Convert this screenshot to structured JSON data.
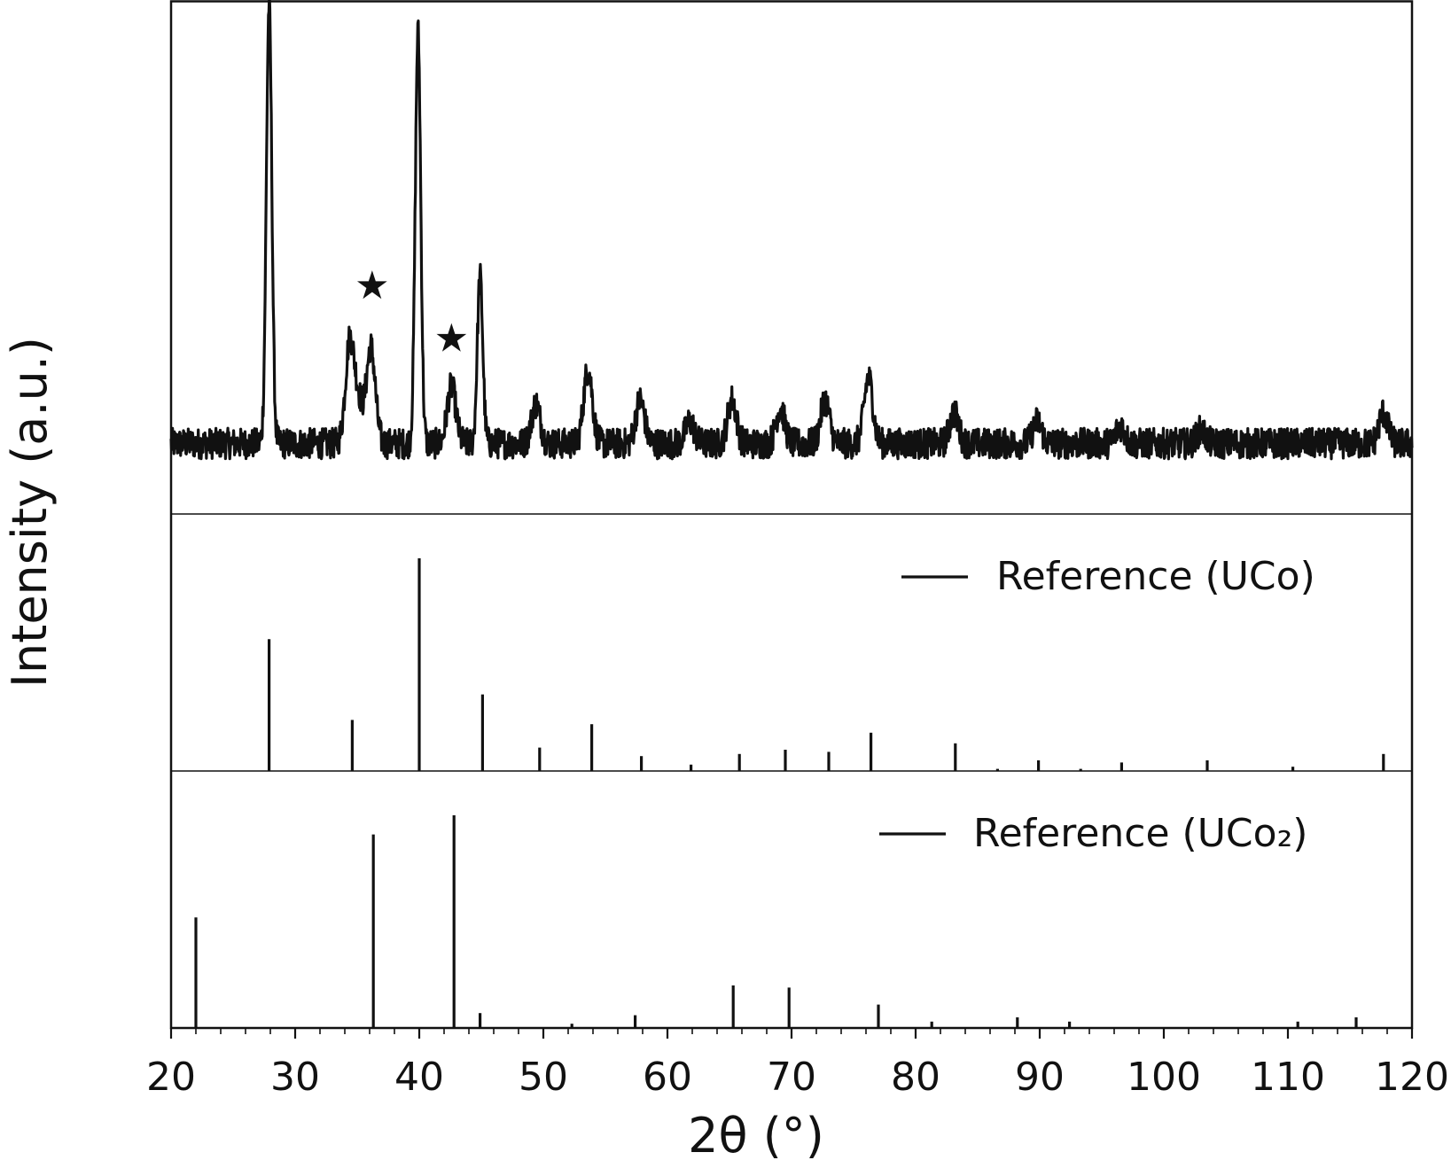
{
  "chart_data": {
    "type": "line",
    "xlabel": "2θ (°)",
    "ylabel": "Intensity (a.u.)",
    "xlim": [
      20,
      120
    ],
    "x_ticks": [
      "20",
      "30",
      "40",
      "50",
      "60",
      "70",
      "80",
      "90",
      "100",
      "110",
      "120"
    ],
    "y_ticks_shown": false,
    "grid": false,
    "panels": [
      {
        "name": "measured",
        "type": "line",
        "legend": "",
        "background_level": 0.1,
        "noise_level": 0.035,
        "peaks": [
          {
            "x": 27.9,
            "height": 1.0
          },
          {
            "x": 34.4,
            "height": 0.23
          },
          {
            "x": 35.1,
            "height": 0.09
          },
          {
            "x": 36.1,
            "height": 0.22
          },
          {
            "x": 39.9,
            "height": 0.94
          },
          {
            "x": 42.6,
            "height": 0.13
          },
          {
            "x": 44.9,
            "height": 0.38
          },
          {
            "x": 49.4,
            "height": 0.09
          },
          {
            "x": 53.6,
            "height": 0.17
          },
          {
            "x": 57.8,
            "height": 0.1
          },
          {
            "x": 61.8,
            "height": 0.05
          },
          {
            "x": 65.2,
            "height": 0.1
          },
          {
            "x": 69.1,
            "height": 0.08
          },
          {
            "x": 72.7,
            "height": 0.1
          },
          {
            "x": 76.2,
            "height": 0.15
          },
          {
            "x": 83.1,
            "height": 0.07
          },
          {
            "x": 89.8,
            "height": 0.05
          },
          {
            "x": 96.5,
            "height": 0.04
          },
          {
            "x": 103.0,
            "height": 0.03
          },
          {
            "x": 117.7,
            "height": 0.07
          }
        ],
        "markers": [
          {
            "x": 36.2,
            "symbol": "★",
            "y": 0.43
          },
          {
            "x": 42.6,
            "symbol": "★",
            "y": 0.31
          }
        ]
      },
      {
        "name": "reference-uco",
        "type": "stick",
        "legend": "Reference (UCo)",
        "sticks": [
          {
            "x": 27.9,
            "i": 0.62
          },
          {
            "x": 34.6,
            "i": 0.24
          },
          {
            "x": 40.0,
            "i": 1.0
          },
          {
            "x": 45.1,
            "i": 0.36
          },
          {
            "x": 49.7,
            "i": 0.11
          },
          {
            "x": 53.9,
            "i": 0.22
          },
          {
            "x": 57.9,
            "i": 0.07
          },
          {
            "x": 61.9,
            "i": 0.03
          },
          {
            "x": 65.8,
            "i": 0.08
          },
          {
            "x": 69.5,
            "i": 0.1
          },
          {
            "x": 73.0,
            "i": 0.09
          },
          {
            "x": 76.4,
            "i": 0.18
          },
          {
            "x": 83.2,
            "i": 0.13
          },
          {
            "x": 86.6,
            "i": 0.01
          },
          {
            "x": 89.9,
            "i": 0.05
          },
          {
            "x": 93.3,
            "i": 0.01
          },
          {
            "x": 96.6,
            "i": 0.04
          },
          {
            "x": 103.5,
            "i": 0.05
          },
          {
            "x": 110.4,
            "i": 0.02
          },
          {
            "x": 117.7,
            "i": 0.08
          }
        ]
      },
      {
        "name": "reference-uco2",
        "type": "stick",
        "legend": "Reference (UCo₂)",
        "sticks": [
          {
            "x": 22.0,
            "i": 0.52
          },
          {
            "x": 36.3,
            "i": 0.91
          },
          {
            "x": 42.8,
            "i": 1.0
          },
          {
            "x": 44.9,
            "i": 0.07
          },
          {
            "x": 52.3,
            "i": 0.02
          },
          {
            "x": 57.4,
            "i": 0.06
          },
          {
            "x": 65.3,
            "i": 0.2
          },
          {
            "x": 69.8,
            "i": 0.19
          },
          {
            "x": 77.0,
            "i": 0.11
          },
          {
            "x": 81.3,
            "i": 0.03
          },
          {
            "x": 88.2,
            "i": 0.05
          },
          {
            "x": 92.4,
            "i": 0.03
          },
          {
            "x": 110.8,
            "i": 0.03
          },
          {
            "x": 115.5,
            "i": 0.05
          }
        ]
      }
    ]
  }
}
